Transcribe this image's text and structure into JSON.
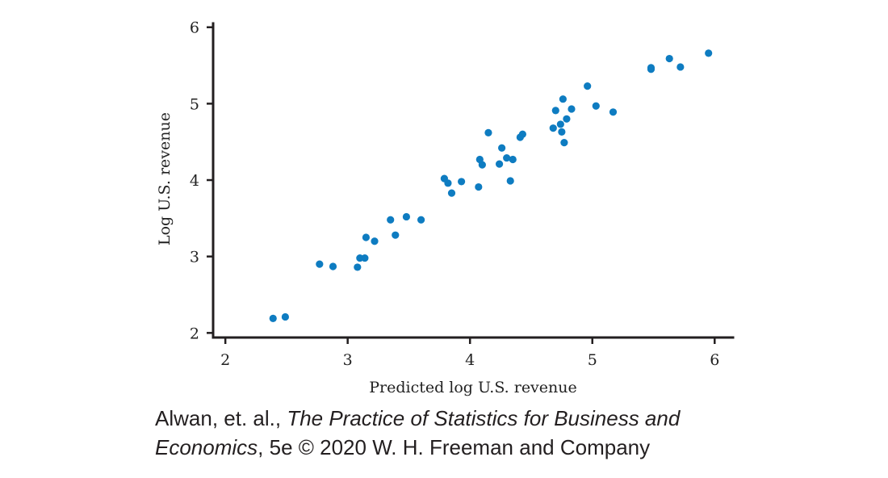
{
  "chart_data": {
    "type": "scatter",
    "title": "",
    "xlabel": "Predicted log U.S. revenue",
    "ylabel": "Log U.S. revenue",
    "xlim": [
      1.9,
      6.15
    ],
    "ylim": [
      1.94,
      6.05
    ],
    "xticks": [
      2,
      3,
      4,
      5,
      6
    ],
    "yticks": [
      2,
      3,
      4,
      5,
      6
    ],
    "grid": false,
    "marker_color": "#0e7cc1",
    "points": [
      [
        2.39,
        2.19
      ],
      [
        2.49,
        2.21
      ],
      [
        2.77,
        2.9
      ],
      [
        2.88,
        2.87
      ],
      [
        3.08,
        2.86
      ],
      [
        3.1,
        2.98
      ],
      [
        3.14,
        2.98
      ],
      [
        3.15,
        3.25
      ],
      [
        3.22,
        3.2
      ],
      [
        3.35,
        3.48
      ],
      [
        3.39,
        3.28
      ],
      [
        3.48,
        3.52
      ],
      [
        3.6,
        3.48
      ],
      [
        3.79,
        4.02
      ],
      [
        3.82,
        3.96
      ],
      [
        3.85,
        3.83
      ],
      [
        3.93,
        3.98
      ],
      [
        4.07,
        3.91
      ],
      [
        4.08,
        4.27
      ],
      [
        4.1,
        4.2
      ],
      [
        4.15,
        4.62
      ],
      [
        4.24,
        4.21
      ],
      [
        4.26,
        4.42
      ],
      [
        4.3,
        4.29
      ],
      [
        4.33,
        3.99
      ],
      [
        4.35,
        4.27
      ],
      [
        4.41,
        4.56
      ],
      [
        4.43,
        4.6
      ],
      [
        4.68,
        4.68
      ],
      [
        4.7,
        4.91
      ],
      [
        4.74,
        4.73
      ],
      [
        4.75,
        4.63
      ],
      [
        4.76,
        5.06
      ],
      [
        4.77,
        4.49
      ],
      [
        4.79,
        4.8
      ],
      [
        4.83,
        4.93
      ],
      [
        4.96,
        5.23
      ],
      [
        5.03,
        4.97
      ],
      [
        5.17,
        4.89
      ],
      [
        5.48,
        5.45
      ],
      [
        5.48,
        5.47
      ],
      [
        5.63,
        5.59
      ],
      [
        5.72,
        5.48
      ],
      [
        5.95,
        5.66
      ]
    ]
  },
  "caption": {
    "authors": "Alwan, et. al., ",
    "book_title_line1": "The Practice of Statistics for Business and",
    "book_title_line2": "Economics",
    "rest": ", 5e © 2020 W. H. Freeman and Company"
  }
}
